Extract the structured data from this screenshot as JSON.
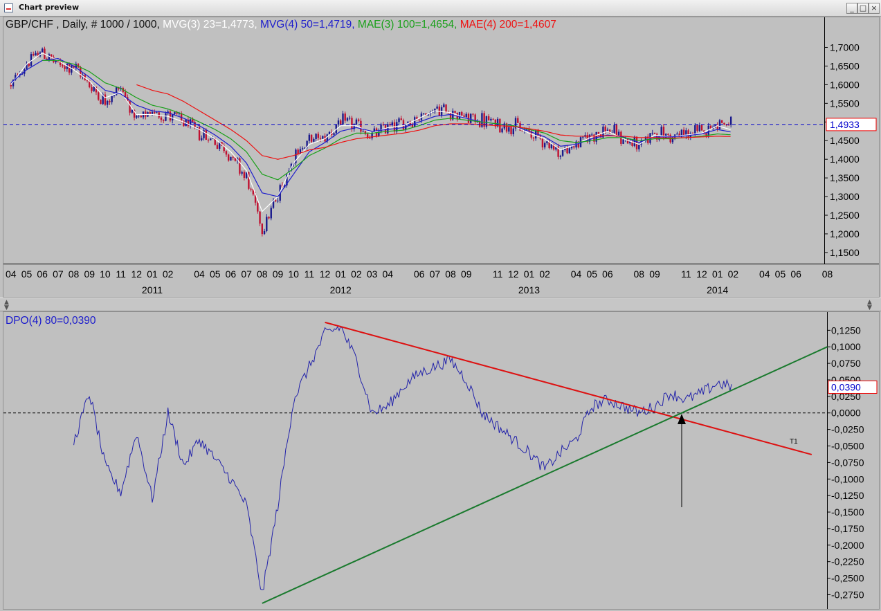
{
  "window": {
    "title": "Chart preview",
    "buttons": [
      "_",
      "□",
      "×"
    ]
  },
  "colors": {
    "background": "#c0c0c0",
    "price_up": "#1a1a8c",
    "price_down": "#c01030",
    "mvg3": "#ffffff",
    "mvg4": "#1c1ccc",
    "mae3": "#1aa01a",
    "mae4": "#ee1111",
    "dpo": "#2222aa",
    "trend_red": "#dd1111",
    "trend_green": "#1a7a2e",
    "label_blue": "#0000cc"
  },
  "price_panel": {
    "legend": [
      {
        "text": "GBP/CHF , Daily, # 1000 / 1000, ",
        "color": "#111111"
      },
      {
        "text": "MVG(3) 23=1,4773, ",
        "color": "#ffffff"
      },
      {
        "text": "MVG(4) 50=1,4719, ",
        "color": "#1c1ccc"
      },
      {
        "text": "MAE(3) 100=1,4654, ",
        "color": "#1aa01a"
      },
      {
        "text": "MAE(4) 200=1,4607",
        "color": "#ee1111"
      }
    ],
    "last_value_label": "1,4933",
    "y_ticks": [
      "1,7000",
      "1,6500",
      "1,6000",
      "1,5500",
      "1,5000",
      "1,4500",
      "1,4000",
      "1,3500",
      "1,3000",
      "1,2500",
      "1,2000",
      "1,1500"
    ],
    "month_labels": [
      "04",
      "05",
      "06",
      "07",
      "08",
      "09",
      "10",
      "11",
      "12",
      "01",
      "02",
      "04",
      "05",
      "06",
      "07",
      "08",
      "09",
      "10",
      "11",
      "12",
      "01",
      "02",
      "03",
      "04",
      "06",
      "07",
      "08",
      "09",
      "11",
      "12",
      "01",
      "02",
      "04",
      "05",
      "06",
      "08",
      "09",
      "11",
      "12",
      "01",
      "02",
      "04",
      "05",
      "06",
      "08"
    ],
    "year_labels": [
      "2011",
      "2012",
      "2013",
      "2014"
    ]
  },
  "dpo_panel": {
    "legend": "DPO(4) 80=0,0390",
    "last_value_label": "0,0390",
    "y_ticks": [
      "0,1250",
      "0,1000",
      "0,0750",
      "0,0500",
      "0,0250",
      "0,0000",
      "-0,0250",
      "-0,0500",
      "-0,0750",
      "-0,1000",
      "-0,1250",
      "-0,1500",
      "-0,1750",
      "-0,2000",
      "-0,2250",
      "-0,2500",
      "-0,2750"
    ],
    "trendline_label": "T1"
  },
  "chart_data": [
    {
      "type": "line",
      "title": "GBP/CHF , Daily, # 1000 / 1000",
      "xlabel": "",
      "ylabel": "",
      "ylim": [
        1.135,
        1.725
      ],
      "grid": false,
      "x_months": [
        "2010-04",
        "2010-05",
        "2010-06",
        "2010-07",
        "2010-08",
        "2010-09",
        "2010-10",
        "2010-11",
        "2010-12",
        "2011-01",
        "2011-02",
        "2011-03",
        "2011-04",
        "2011-05",
        "2011-06",
        "2011-07",
        "2011-08",
        "2011-09",
        "2011-10",
        "2011-11",
        "2011-12",
        "2012-01",
        "2012-02",
        "2012-03",
        "2012-04",
        "2012-05",
        "2012-06",
        "2012-07",
        "2012-08",
        "2012-09",
        "2012-10",
        "2012-11",
        "2012-12",
        "2013-01",
        "2013-02",
        "2013-03",
        "2013-04",
        "2013-05",
        "2013-06",
        "2013-07",
        "2013-08",
        "2013-09",
        "2013-10",
        "2013-11",
        "2013-12",
        "2014-01",
        "2014-02"
      ],
      "series": [
        {
          "name": "GBP/CHF",
          "values": [
            1.595,
            1.66,
            1.69,
            1.65,
            1.65,
            1.6,
            1.555,
            1.595,
            1.5,
            1.525,
            1.52,
            1.5,
            1.47,
            1.45,
            1.41,
            1.35,
            1.215,
            1.3,
            1.41,
            1.45,
            1.46,
            1.5,
            1.49,
            1.46,
            1.49,
            1.495,
            1.515,
            1.535,
            1.53,
            1.51,
            1.505,
            1.495,
            1.49,
            1.47,
            1.45,
            1.415,
            1.44,
            1.465,
            1.48,
            1.455,
            1.435,
            1.475,
            1.46,
            1.468,
            1.475,
            1.5,
            1.493
          ]
        },
        {
          "name": "MVG(3) 23",
          "values": [
            1.6,
            1.655,
            1.685,
            1.665,
            1.64,
            1.61,
            1.565,
            1.58,
            1.52,
            1.52,
            1.515,
            1.5,
            1.48,
            1.455,
            1.42,
            1.37,
            1.26,
            1.3,
            1.39,
            1.44,
            1.455,
            1.49,
            1.49,
            1.47,
            1.485,
            1.49,
            1.51,
            1.53,
            1.525,
            1.51,
            1.5,
            1.495,
            1.49,
            1.47,
            1.455,
            1.425,
            1.44,
            1.46,
            1.475,
            1.455,
            1.44,
            1.465,
            1.46,
            1.465,
            1.47,
            1.49,
            1.4773
          ]
        },
        {
          "name": "MVG(4) 50",
          "values": [
            1.605,
            1.64,
            1.665,
            1.67,
            1.65,
            1.62,
            1.585,
            1.575,
            1.545,
            1.53,
            1.525,
            1.51,
            1.49,
            1.465,
            1.435,
            1.39,
            1.31,
            1.3,
            1.36,
            1.42,
            1.445,
            1.475,
            1.485,
            1.475,
            1.48,
            1.485,
            1.5,
            1.515,
            1.52,
            1.51,
            1.5,
            1.495,
            1.49,
            1.475,
            1.46,
            1.435,
            1.44,
            1.455,
            1.465,
            1.46,
            1.445,
            1.46,
            1.46,
            1.463,
            1.468,
            1.48,
            1.4719
          ]
        },
        {
          "name": "MAE(3) 100",
          "values": [
            null,
            null,
            1.665,
            1.665,
            1.655,
            1.635,
            1.605,
            1.59,
            1.565,
            1.545,
            1.535,
            1.52,
            1.5,
            1.48,
            1.455,
            1.42,
            1.36,
            1.345,
            1.375,
            1.41,
            1.43,
            1.455,
            1.47,
            1.47,
            1.475,
            1.478,
            1.49,
            1.505,
            1.51,
            1.505,
            1.5,
            1.495,
            1.49,
            1.48,
            1.47,
            1.45,
            1.445,
            1.45,
            1.458,
            1.458,
            1.45,
            1.455,
            1.455,
            1.458,
            1.462,
            1.468,
            1.4654
          ]
        },
        {
          "name": "MAE(4) 200",
          "values": [
            null,
            null,
            null,
            null,
            null,
            null,
            null,
            null,
            1.6,
            1.585,
            1.575,
            1.555,
            1.53,
            1.505,
            1.48,
            1.45,
            1.41,
            1.4,
            1.41,
            1.425,
            1.432,
            1.445,
            1.455,
            1.46,
            1.465,
            1.47,
            1.478,
            1.49,
            1.495,
            1.495,
            1.493,
            1.49,
            1.488,
            1.482,
            1.475,
            1.465,
            1.462,
            1.462,
            1.463,
            1.462,
            1.458,
            1.458,
            1.457,
            1.458,
            1.46,
            1.462,
            1.4607
          ]
        }
      ]
    },
    {
      "type": "line",
      "title": "DPO(4) 80=0,0390",
      "xlabel": "",
      "ylabel": "",
      "ylim": [
        -0.285,
        0.14
      ],
      "grid": false,
      "x_months": [
        "2010-08",
        "2010-09",
        "2010-10",
        "2010-11",
        "2010-12",
        "2011-01",
        "2011-02",
        "2011-03",
        "2011-04",
        "2011-05",
        "2011-06",
        "2011-07",
        "2011-08",
        "2011-09",
        "2011-10",
        "2011-11",
        "2011-12",
        "2012-01",
        "2012-02",
        "2012-03",
        "2012-04",
        "2012-05",
        "2012-06",
        "2012-07",
        "2012-08",
        "2012-09",
        "2012-10",
        "2012-11",
        "2012-12",
        "2013-01",
        "2013-02",
        "2013-03",
        "2013-04",
        "2013-05",
        "2013-06",
        "2013-07",
        "2013-08",
        "2013-09",
        "2013-10",
        "2013-11",
        "2013-12",
        "2014-01",
        "2014-02"
      ],
      "series": [
        {
          "name": "DPO(4) 80",
          "values": [
            -0.045,
            0.03,
            -0.08,
            -0.12,
            -0.03,
            -0.13,
            0.0,
            -0.08,
            -0.04,
            -0.07,
            -0.1,
            -0.14,
            -0.275,
            -0.14,
            0.02,
            0.07,
            0.12,
            0.13,
            0.08,
            0.0,
            0.01,
            0.04,
            0.06,
            0.07,
            0.08,
            0.05,
            0.0,
            -0.02,
            -0.04,
            -0.06,
            -0.085,
            -0.06,
            -0.04,
            0.01,
            0.02,
            0.01,
            0.0,
            0.01,
            0.03,
            0.02,
            0.03,
            0.045,
            0.039
          ]
        }
      ],
      "trendlines": [
        {
          "name": "T1",
          "color": "#dd1111",
          "from": [
            "2011-12",
            0.137
          ],
          "to": [
            "2014-07",
            -0.063
          ]
        },
        {
          "name": "",
          "color": "#1a7a2e",
          "from": [
            "2011-08",
            -0.288
          ],
          "to": [
            "2014-08",
            0.1
          ]
        }
      ],
      "reference_line": 0.0
    }
  ]
}
